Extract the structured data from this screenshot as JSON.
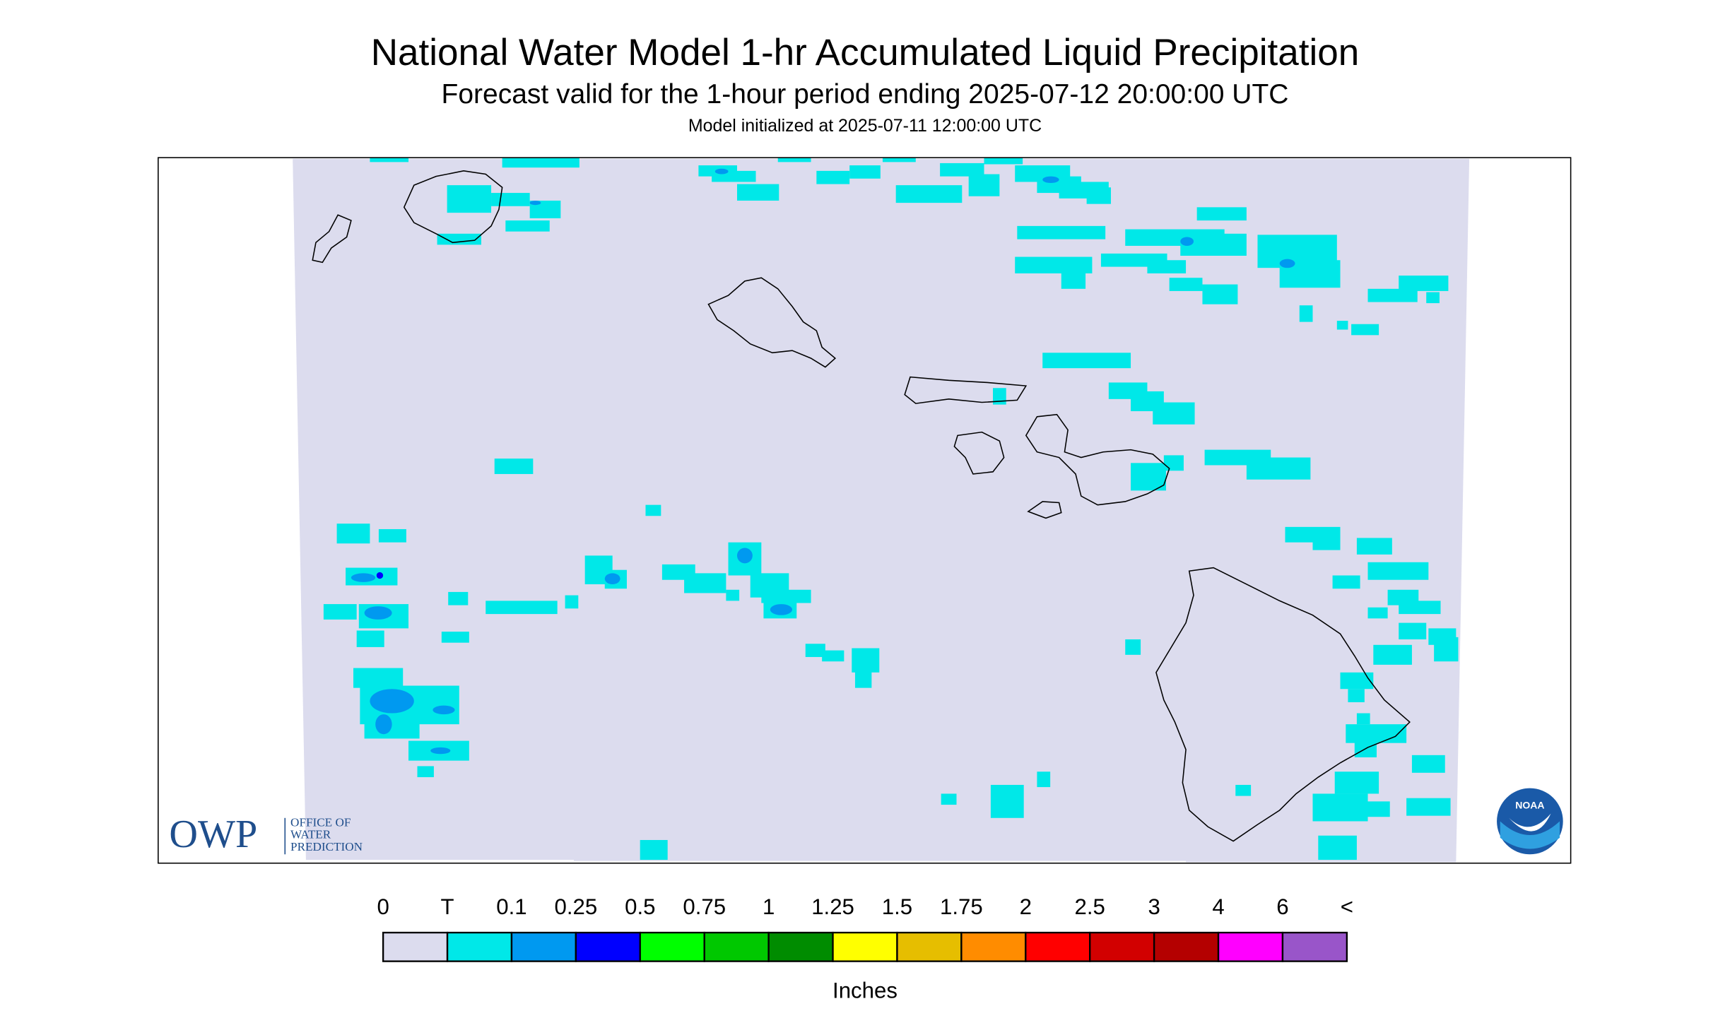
{
  "header": {
    "title": "National Water Model 1-hr Accumulated Liquid Precipitation",
    "subtitle": "Forecast valid for the 1-hour period ending 2025-07-12 20:00:00 UTC",
    "init": "Model initialized at 2025-07-11 12:00:00 UTC"
  },
  "legend": {
    "labels": [
      "0",
      "T",
      "0.1",
      "0.25",
      "0.5",
      "0.75",
      "1",
      "1.25",
      "1.5",
      "1.75",
      "2",
      "2.5",
      "3",
      "4",
      "6",
      "<"
    ],
    "colors": [
      "#dcdcee",
      "#00e8e8",
      "#0099f0",
      "#0000ff",
      "#00ff00",
      "#00c800",
      "#008c00",
      "#ffff00",
      "#e6be00",
      "#ff8c00",
      "#ff0000",
      "#d20000",
      "#b40000",
      "#ff00ff",
      "#9955c9"
    ],
    "unit": "Inches"
  },
  "logos": {
    "owp": "OWP",
    "owp_lines": [
      "OFFICE OF",
      "WATER",
      "PREDICTION"
    ],
    "noaa": "NOAA"
  }
}
